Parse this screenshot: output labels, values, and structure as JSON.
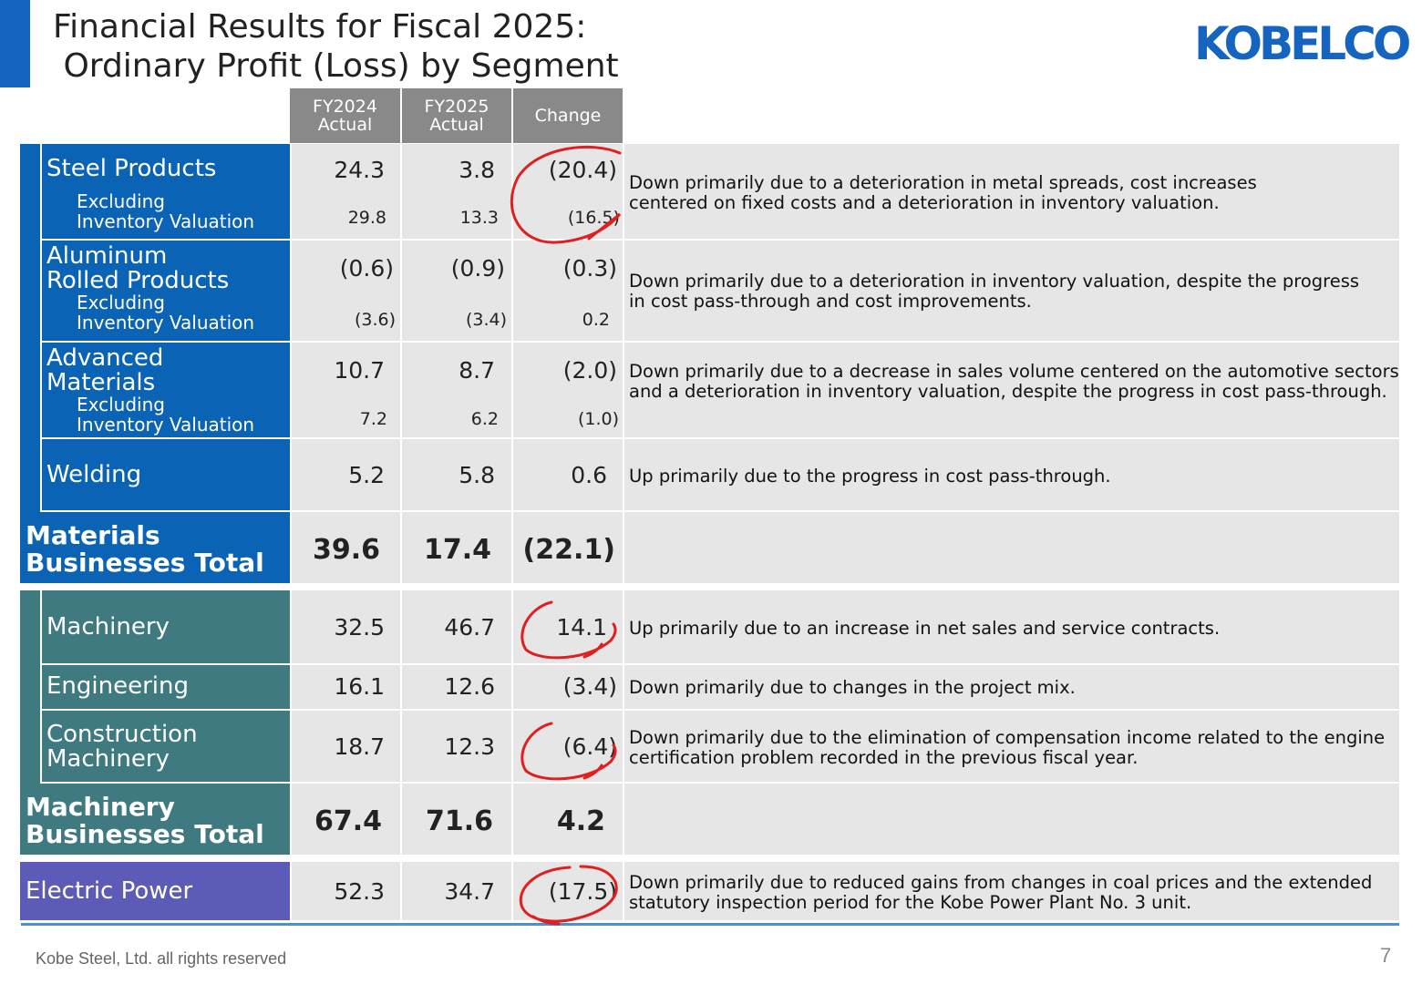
{
  "title_line1": "Financial Results for Fiscal 2025:",
  "title_line2": " Ordinary Profit (Loss) by Segment",
  "logo": "KOBELCO",
  "columns": {
    "fy2024": [
      "FY2024",
      "Actual"
    ],
    "fy2025": [
      "FY2025",
      "Actual"
    ],
    "change": "Change"
  },
  "rows": {
    "steel": {
      "label": "Steel Products",
      "sub_label_1": "Excluding",
      "sub_label_2": "Inventory Valuation",
      "fy2024": "24.3",
      "fy2025": "3.8",
      "change": "(20.4)",
      "sub_fy2024": "29.8",
      "sub_fy2025": "13.3",
      "sub_change": "(16.5)",
      "comment": "Down primarily due to a deterioration in metal spreads, cost increases centered on fixed costs and a deterioration in inventory valuation."
    },
    "aluminum": {
      "label_1": "Aluminum",
      "label_2": "Rolled Products",
      "sub_label_1": "Excluding",
      "sub_label_2": "Inventory Valuation",
      "fy2024": "(0.6)",
      "fy2025": "(0.9)",
      "change": "(0.3)",
      "sub_fy2024": "(3.6)",
      "sub_fy2025": "(3.4)",
      "sub_change": "0.2",
      "comment": "Down primarily due to a deterioration in inventory valuation, despite the progress in cost pass-through and cost improvements."
    },
    "advanced": {
      "label_1": "Advanced",
      "label_2": "Materials",
      "sub_label_1": "Excluding",
      "sub_label_2": "Inventory Valuation",
      "fy2024": "10.7",
      "fy2025": "8.7",
      "change": "(2.0)",
      "sub_fy2024": "7.2",
      "sub_fy2025": "6.2",
      "sub_change": "(1.0)",
      "comment": "Down primarily due to a decrease in sales volume centered on the automotive sectors and a deterioration in inventory valuation, despite the progress in cost pass-through."
    },
    "welding": {
      "label": "Welding",
      "fy2024": "5.2",
      "fy2025": "5.8",
      "change": "0.6",
      "comment": "Up primarily due to the progress in cost pass-through."
    },
    "materials_total": {
      "label_1": "Materials",
      "label_2": "Businesses Total",
      "fy2024": "39.6",
      "fy2025": "17.4",
      "change": "(22.1)"
    },
    "machinery": {
      "label": "Machinery",
      "fy2024": "32.5",
      "fy2025": "46.7",
      "change": "14.1",
      "comment": "Up primarily due to an increase in net sales and service contracts."
    },
    "engineering": {
      "label": "Engineering",
      "fy2024": "16.1",
      "fy2025": "12.6",
      "change": "(3.4)",
      "comment": "Down primarily due to changes in the project mix."
    },
    "construction": {
      "label_1": "Construction",
      "label_2": "Machinery",
      "fy2024": "18.7",
      "fy2025": "12.3",
      "change": "(6.4)",
      "comment": "Down primarily due to the elimination of compensation income related to the engine certification problem recorded in the previous fiscal year."
    },
    "machinery_total": {
      "label_1": "Machinery",
      "label_2": "Businesses Total",
      "fy2024": "67.4",
      "fy2025": "71.6",
      "change": "4.2"
    },
    "electric": {
      "label": "Electric Power",
      "fy2024": "52.3",
      "fy2025": "34.7",
      "change": "(17.5)",
      "comment": "Down primarily due to reduced gains from changes in coal prices and the extended statutory inspection period for the Kobe Power Plant No. 3 unit."
    }
  },
  "colors": {
    "materials": "#0b63b6",
    "machinery": "#3e7a80",
    "electric": "#5c5cb8",
    "header": "#898989",
    "cell": "#e6e6e6",
    "circle": "#e02020"
  },
  "footer": "Kobe Steel, Ltd.   all rights reserved",
  "page_number": "7"
}
